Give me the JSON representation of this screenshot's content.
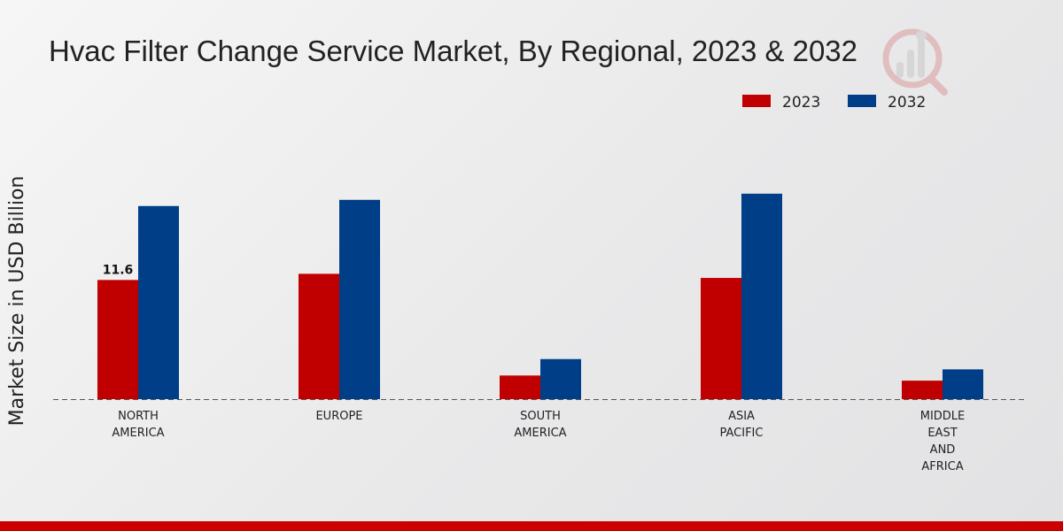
{
  "chart_data": {
    "type": "bar",
    "title": "Hvac Filter Change Service Market, By Regional, 2023 & 2032",
    "ylabel": "Market Size in USD Billion",
    "xlabel": "",
    "categories": [
      [
        "NORTH",
        "AMERICA"
      ],
      [
        "EUROPE"
      ],
      [
        "SOUTH",
        "AMERICA"
      ],
      [
        "ASIA",
        "PACIFIC"
      ],
      [
        "MIDDLE",
        "EAST",
        "AND",
        "AFRICA"
      ]
    ],
    "series": [
      {
        "name": "2023",
        "color": "#c00000",
        "values": [
          11.6,
          12.2,
          2.3,
          11.8,
          1.8
        ]
      },
      {
        "name": "2032",
        "color": "#003f88",
        "values": [
          18.8,
          19.4,
          3.9,
          20.0,
          2.9
        ]
      }
    ],
    "data_labels": [
      {
        "series": 0,
        "index": 0,
        "text": "11.6"
      }
    ],
    "ylim": [
      0,
      28
    ],
    "grid": false,
    "baseline": "dashed",
    "legend_position": "top-right"
  },
  "theme": {
    "accent_bar_color": "#cc0000",
    "background": "#ebebec"
  },
  "watermark": {
    "icon": "market-research-logo-icon"
  }
}
